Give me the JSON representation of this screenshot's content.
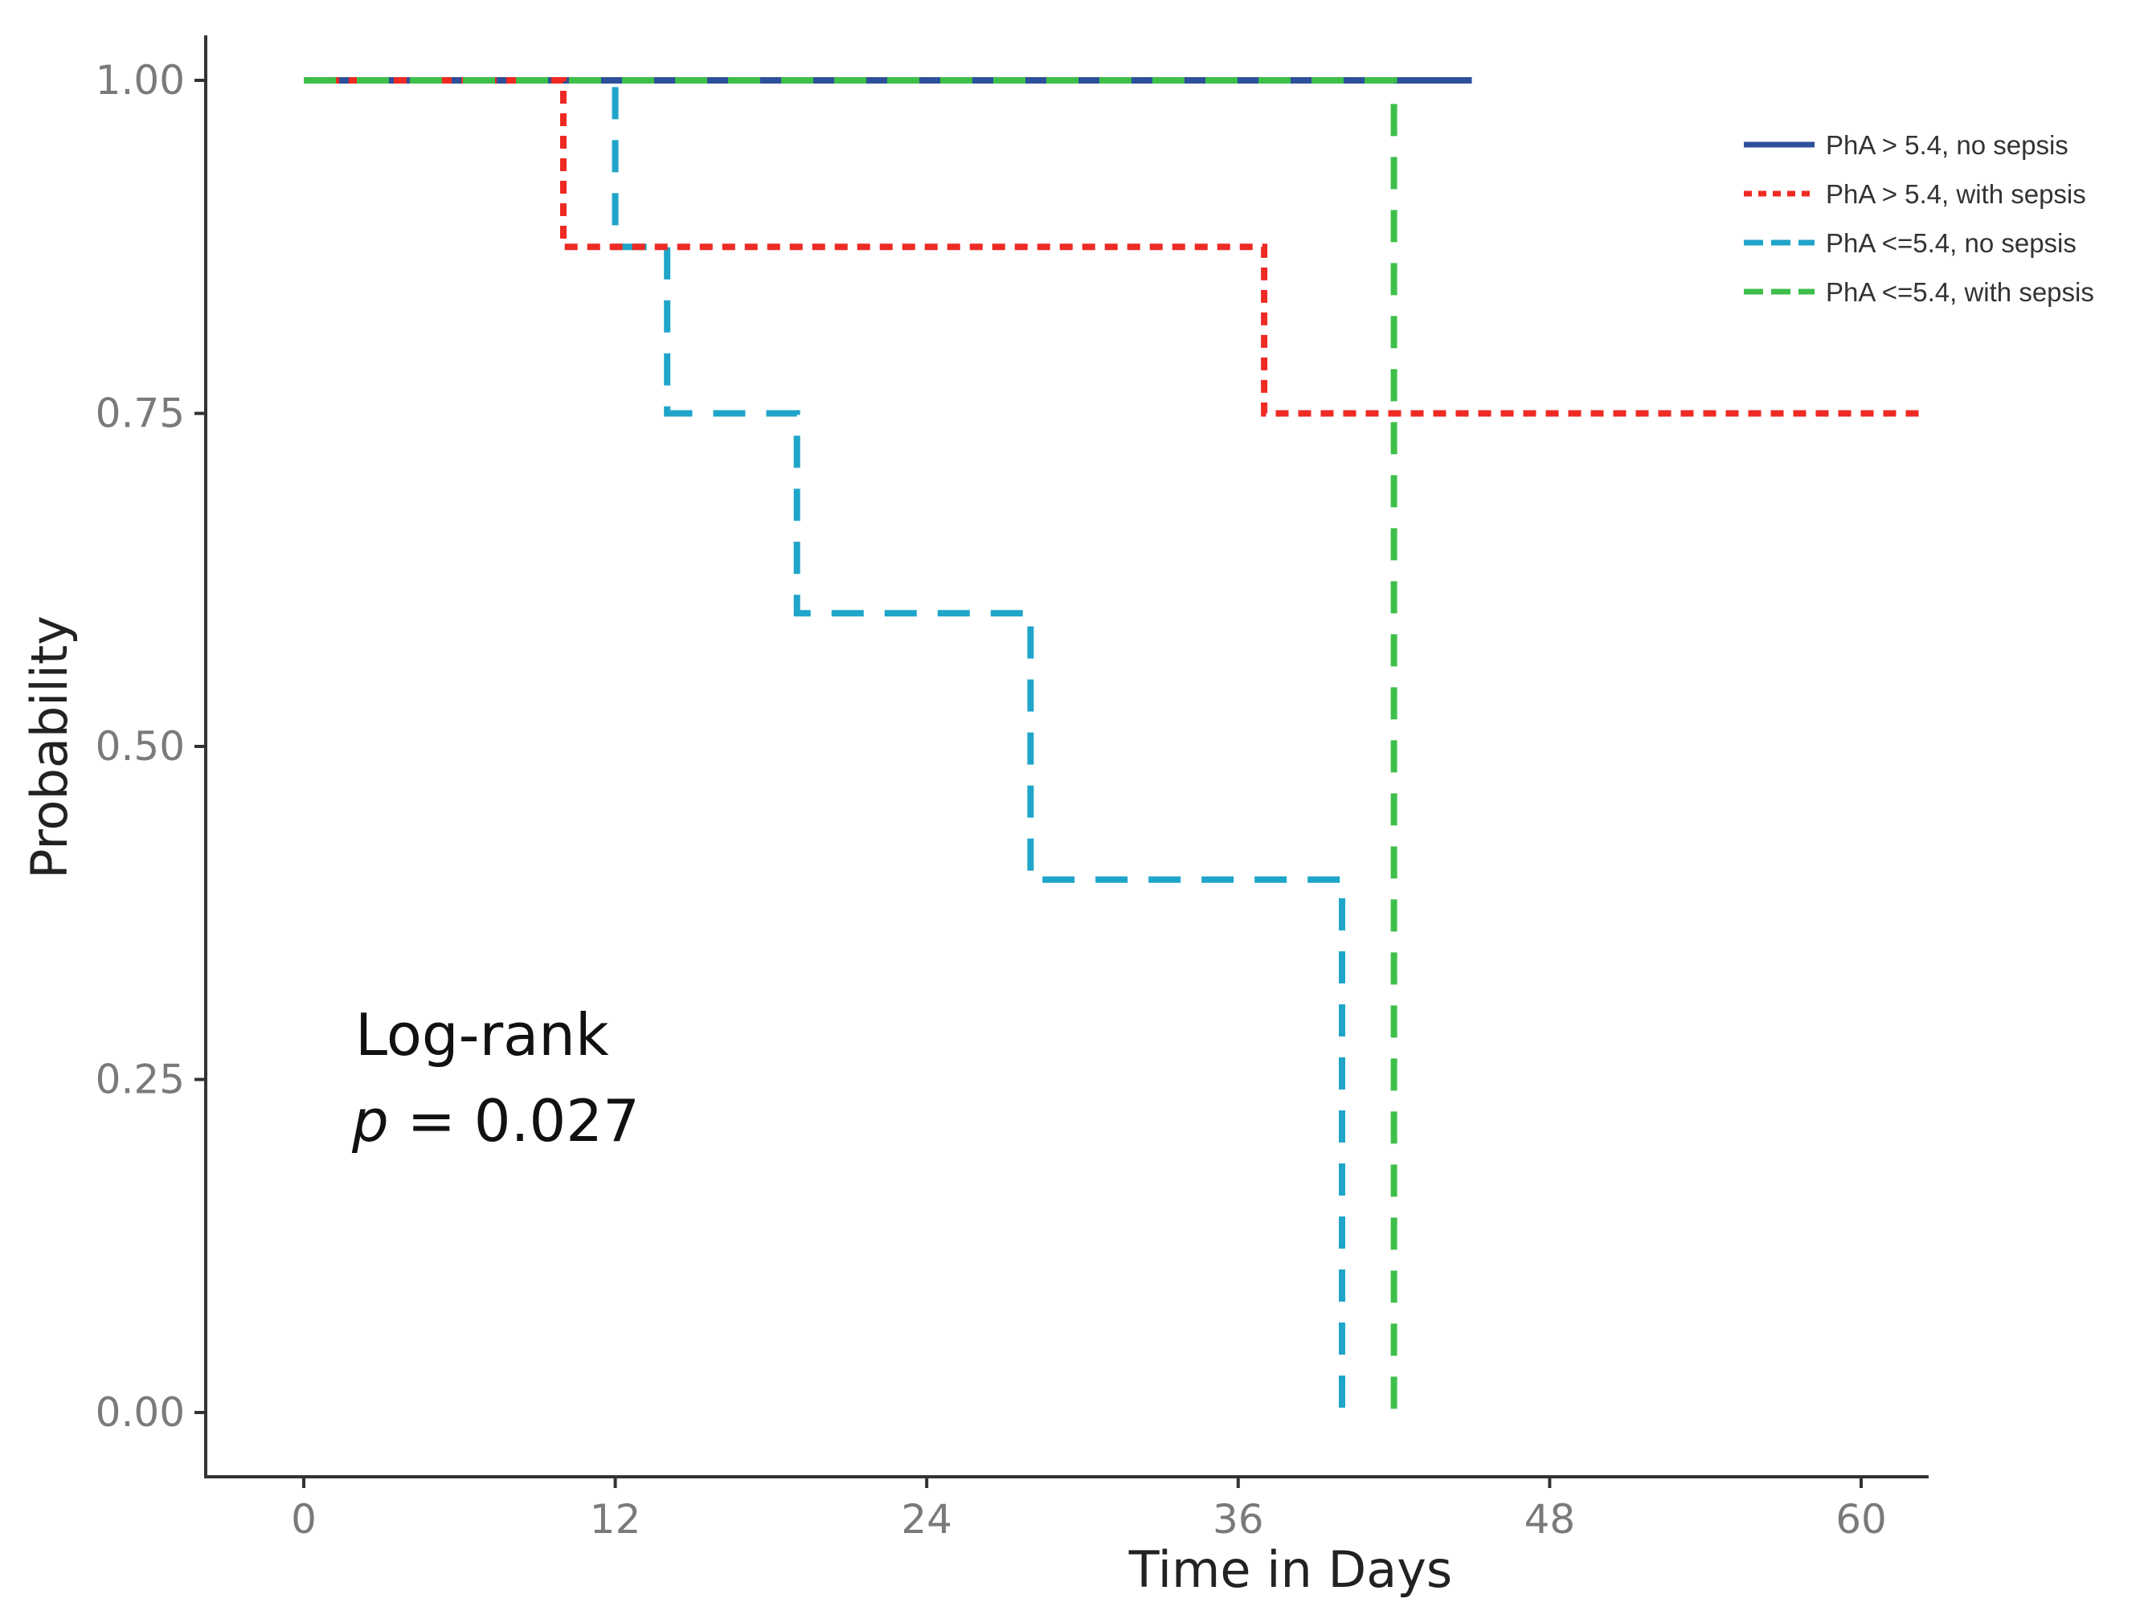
{
  "chart_data": {
    "type": "line",
    "subtype": "kaplan-meier step",
    "title": "",
    "xlabel": "Time in Days",
    "ylabel": "Probability",
    "xlim": [
      -3.6,
      62.5
    ],
    "ylim": [
      -0.05,
      1.03
    ],
    "xticks": [
      0,
      12,
      24,
      36,
      48,
      60
    ],
    "yticks": [
      0.0,
      0.25,
      0.5,
      0.75,
      1.0
    ],
    "xtick_labels": [
      "0",
      "12",
      "24",
      "36",
      "48",
      "60"
    ],
    "ytick_labels": [
      "0.00",
      "0.25",
      "0.50",
      "0.75",
      "1.00"
    ],
    "grid": false,
    "legend_position": "top-right",
    "series": [
      {
        "name": "PhA > 5.4, no sepsis",
        "color": "#2e4f9a",
        "line_style": "solid",
        "x": [
          0,
          45
        ],
        "y": [
          1.0,
          1.0
        ]
      },
      {
        "name": "PhA > 5.4,  with sepsis",
        "color": "#ee2a24",
        "line_style": "dotted",
        "x": [
          0,
          10,
          37,
          62.5
        ],
        "y": [
          1.0,
          0.875,
          0.75,
          0.75
        ]
      },
      {
        "name": "PhA <=5.4, no sepsis",
        "color": "#1fa5c9",
        "line_style": "dashed",
        "x": [
          0,
          12,
          14,
          19,
          28,
          40,
          40
        ],
        "y": [
          1.0,
          0.875,
          0.75,
          0.6,
          0.4,
          0.0,
          0.0
        ]
      },
      {
        "name": "PhA <=5.4, with sepsis",
        "color": "#3dbf4a",
        "line_style": "dashed",
        "x": [
          0,
          42,
          42
        ],
        "y": [
          1.0,
          0.0,
          0.0
        ]
      }
    ],
    "annotations": [
      {
        "text": "Log-rank"
      },
      {
        "text_italic": "p",
        "text": " = 0.027"
      }
    ]
  }
}
